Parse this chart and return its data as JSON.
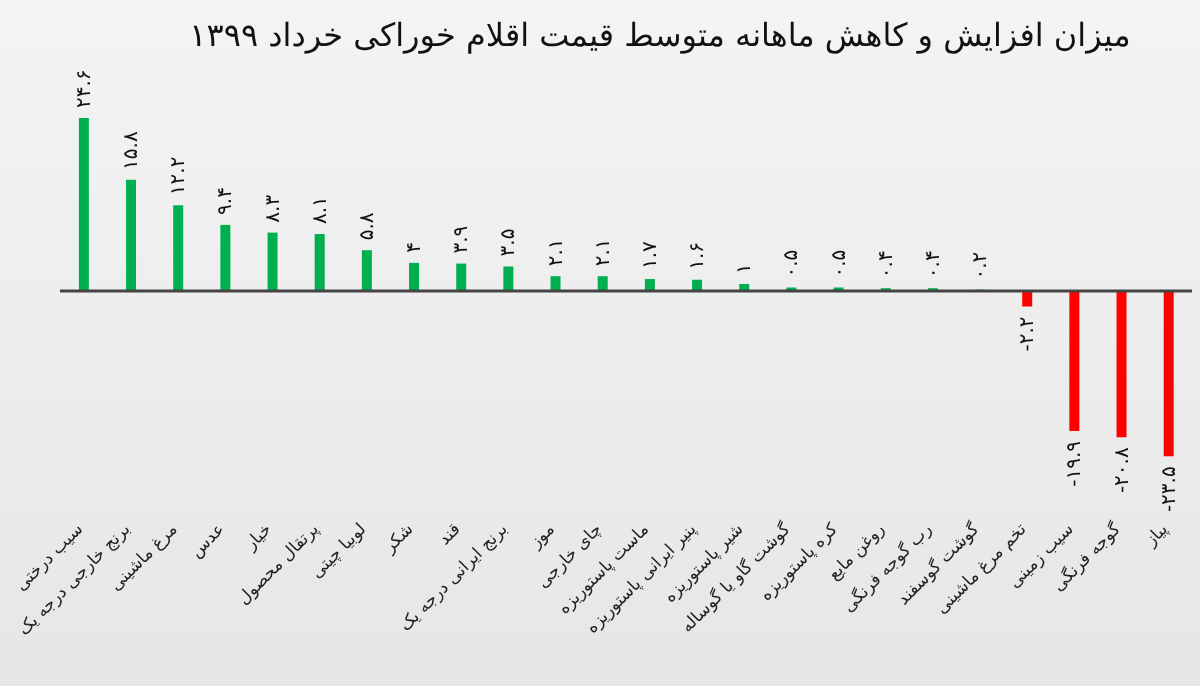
{
  "chart_data": {
    "type": "bar",
    "title": "میزان افزایش و کاهش ماهانه متوسط قیمت اقلام خوراکی خرداد ۱۳۹۹",
    "categories": [
      "سیب درختی",
      "برنج خارجی درجه یک",
      "مرغ ماشینی",
      "عدس",
      "خیار",
      "پرتقال محصول",
      "لوبیا چیتی",
      "شکر",
      "قند",
      "برنج ایرانی درجه یک",
      "موز",
      "چای خارجی",
      "ماست پاستوریزه",
      "پنیر ایرانی پاستوریزه",
      "شیر پاستوریزه",
      "گوشت گاو یا گوساله",
      "کره پاستوریزه",
      "روغن مایع",
      "رب گوجه فرنگی",
      "گوشت گوسفند",
      "تخم مرغ ماشینی",
      "سیب زمینی",
      "گوجه فرنگی",
      "پیاز"
    ],
    "values": [
      24.6,
      15.8,
      12.2,
      9.4,
      8.3,
      8.1,
      5.8,
      4,
      3.9,
      3.5,
      2.1,
      2.1,
      1.7,
      1.6,
      1,
      0.5,
      0.5,
      0.4,
      0.4,
      0.2,
      -2.2,
      -19.9,
      -20.8,
      -23.5
    ],
    "value_labels": [
      "۲۴.۶",
      "۱۵.۸",
      "۱۲.۲",
      "۹.۴",
      "۸.۳",
      "۸.۱",
      "۵.۸",
      "۴",
      "۳.۹",
      "۳.۵",
      "۲.۱",
      "۲.۱",
      "۱.۷",
      "۱.۶",
      "۱",
      "۰.۵",
      "۰.۵",
      "۰.۴",
      "۰.۴",
      "۰.۲",
      "-۲.۲",
      "-۱۹.۹",
      "-۲۰.۸",
      "-۲۳.۵"
    ],
    "colors": [
      "#00b050",
      "#00b050",
      "#00b050",
      "#00b050",
      "#00b050",
      "#00b050",
      "#00b050",
      "#00b050",
      "#00b050",
      "#00b050",
      "#00b050",
      "#00b050",
      "#00b050",
      "#00b050",
      "#00b050",
      "#00b050",
      "#00b050",
      "#00b050",
      "#00b050",
      "#00b050",
      "#ff0000",
      "#ff0000",
      "#ff0000",
      "#ff0000"
    ],
    "tick_labels": "x",
    "legend": false
  }
}
